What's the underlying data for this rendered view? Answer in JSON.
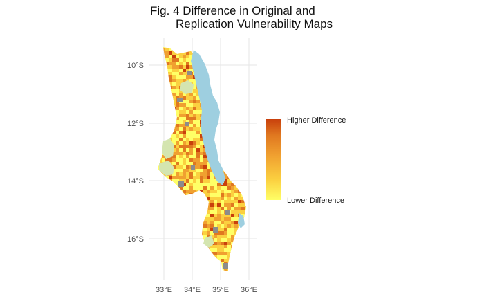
{
  "title": {
    "line1": "Fig. 4 Difference in Original and",
    "line2": "Replication Vulnerability Maps"
  },
  "axes": {
    "y_ticks": [
      "10°S",
      "12°S",
      "14°S",
      "16°S"
    ],
    "x_ticks": [
      "33°E",
      "34°E",
      "35°E",
      "36°E"
    ]
  },
  "legend": {
    "high_label": "Higher Difference",
    "low_label": "Lower Difference",
    "colors": [
      "#ffff66",
      "#fbd040",
      "#f0a030",
      "#e07820",
      "#c8400c"
    ]
  },
  "colors": {
    "lake": "#9ecfe0",
    "no_data_grey": "#8c8c8c",
    "protected_green": "#d4e5b0",
    "grid": "#e5e5e5"
  }
}
